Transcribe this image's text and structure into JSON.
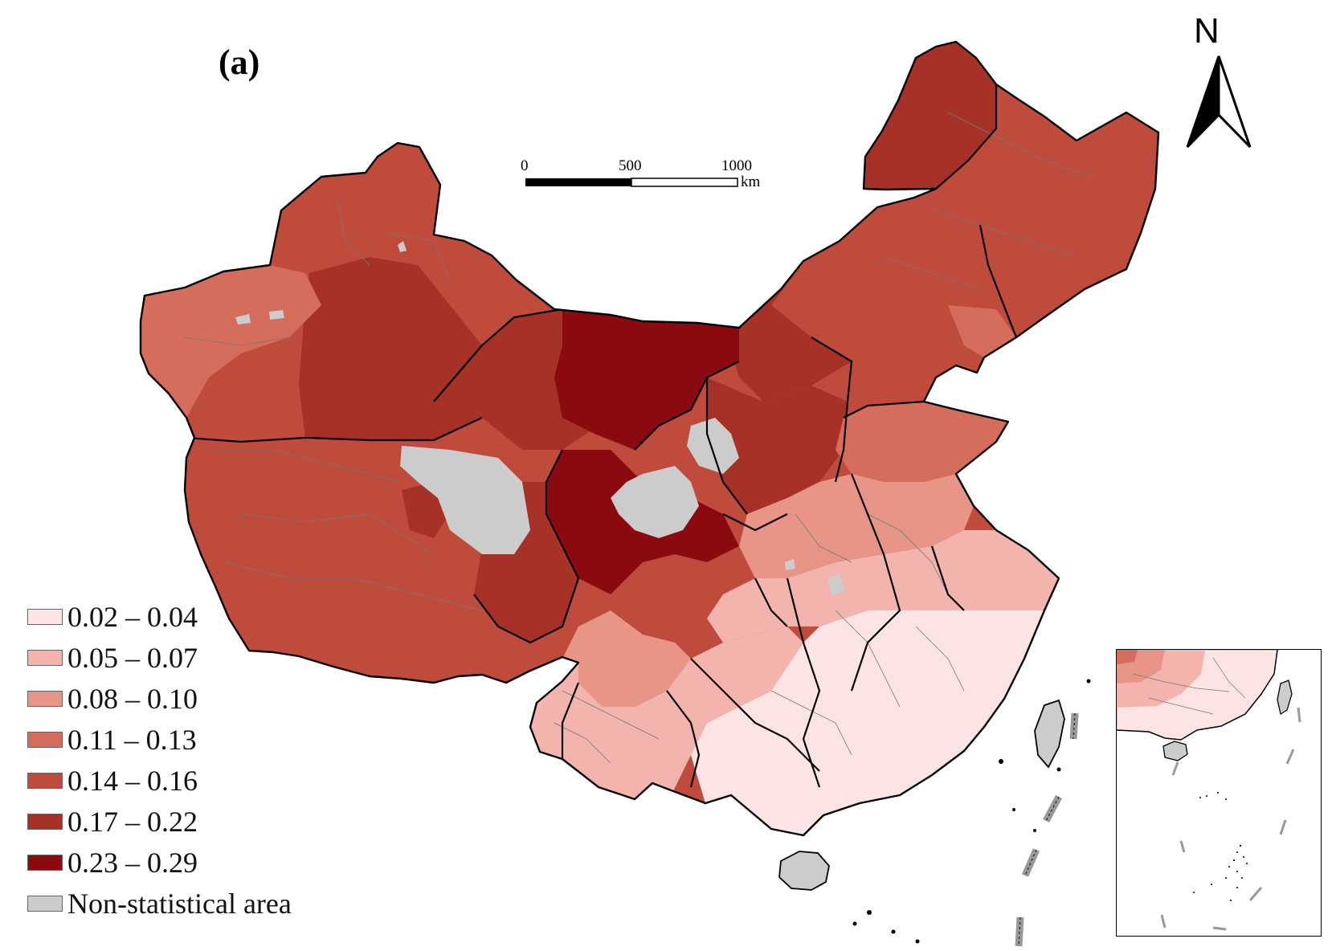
{
  "figure": {
    "panel_label": "(a)",
    "north_label": "N",
    "scale": {
      "ticks": [
        "0",
        "500",
        "1000"
      ],
      "unit": "km"
    }
  },
  "legend": {
    "items": [
      {
        "label": "0.02 – 0.04",
        "color": "#fde4e4"
      },
      {
        "label": "0.05 – 0.07",
        "color": "#f2b4ac"
      },
      {
        "label": "0.08 – 0.10",
        "color": "#e69586"
      },
      {
        "label": "0.11 – 0.13",
        "color": "#d46d5c"
      },
      {
        "label": "0.14 – 0.16",
        "color": "#bf4b3d"
      },
      {
        "label": "0.17 – 0.22",
        "color": "#a63227"
      },
      {
        "label": "0.23 – 0.29",
        "color": "#8b0a0f"
      },
      {
        "label": "Non-statistical area",
        "color": "#cccccc"
      }
    ]
  },
  "colors": {
    "boundary": "#000000",
    "internal_boundary": "#777777",
    "background": "#ffffff"
  }
}
